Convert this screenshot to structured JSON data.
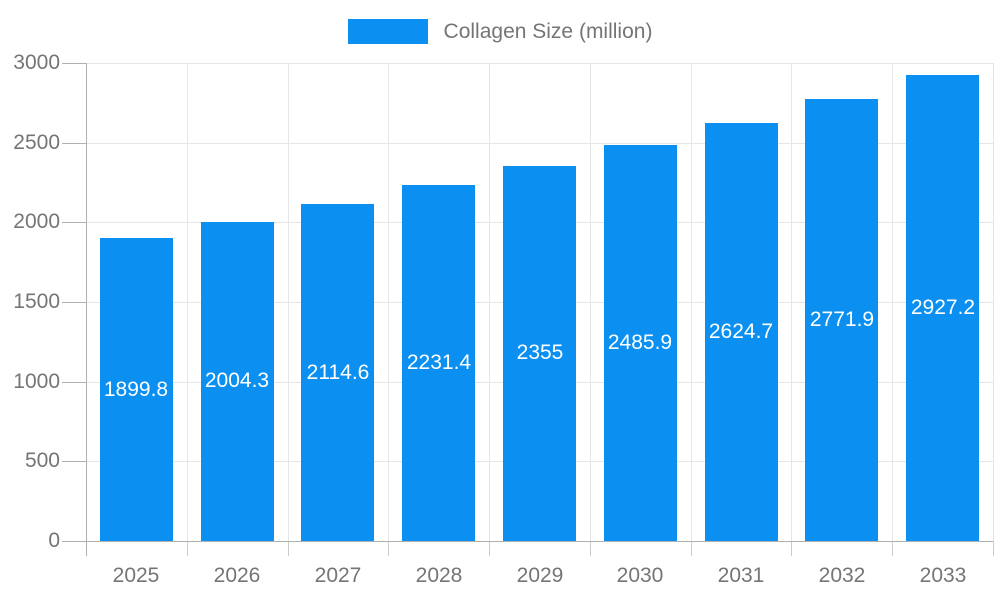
{
  "legend": {
    "label": "Collagen Size (million)"
  },
  "chart_data": {
    "type": "bar",
    "title": "",
    "legend_entries": [
      "Collagen Size (million)"
    ],
    "legend_position": "top-center",
    "categories": [
      "2025",
      "2026",
      "2027",
      "2028",
      "2029",
      "2030",
      "2031",
      "2032",
      "2033"
    ],
    "series": [
      {
        "name": "Collagen Size (million)",
        "values": [
          1899.8,
          2004.3,
          2114.6,
          2231.4,
          2355,
          2485.9,
          2624.7,
          2771.9,
          2927.2
        ]
      }
    ],
    "value_labels": [
      "1899.8",
      "2004.3",
      "2114.6",
      "2231.4",
      "2355",
      "2485.9",
      "2624.7",
      "2771.9",
      "2927.2"
    ],
    "xlabel": "",
    "ylabel": "",
    "ylim": [
      0,
      3000
    ],
    "ytick_step": 500,
    "yticks": [
      0,
      500,
      1000,
      1500,
      2000,
      2500,
      3000
    ],
    "grid": true,
    "colors": {
      "bar": "#0b90f1",
      "axis_text": "#757575",
      "bar_label_text": "#ffffff",
      "gridline": "#e6e6e6",
      "axis_line": "#b0b0b0",
      "tick_line": "#cccccc"
    }
  }
}
